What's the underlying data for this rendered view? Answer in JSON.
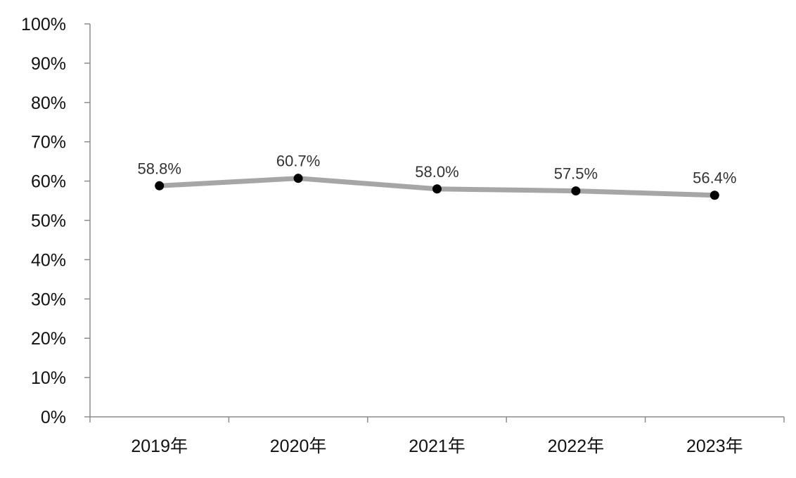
{
  "chart_data": {
    "type": "line",
    "title": "",
    "xlabel": "",
    "ylabel": "",
    "categories": [
      "2019年",
      "2020年",
      "2021年",
      "2022年",
      "2023年"
    ],
    "series": [
      {
        "values": [
          58.8,
          60.7,
          58.0,
          57.5,
          56.4
        ],
        "labels": [
          "58.8%",
          "60.7%",
          "58.0%",
          "57.5%",
          "56.4%"
        ]
      }
    ],
    "ylim": [
      0,
      100
    ],
    "yticks": [
      0,
      10,
      20,
      30,
      40,
      50,
      60,
      70,
      80,
      90,
      100
    ],
    "ytick_labels": [
      "0%",
      "10%",
      "20%",
      "30%",
      "40%",
      "50%",
      "60%",
      "70%",
      "80%",
      "90%",
      "100%"
    ],
    "grid": false,
    "legend": "none",
    "colors": {
      "line": "#a6a6a6",
      "marker": "#000000",
      "axis": "#8c8c8c"
    }
  }
}
